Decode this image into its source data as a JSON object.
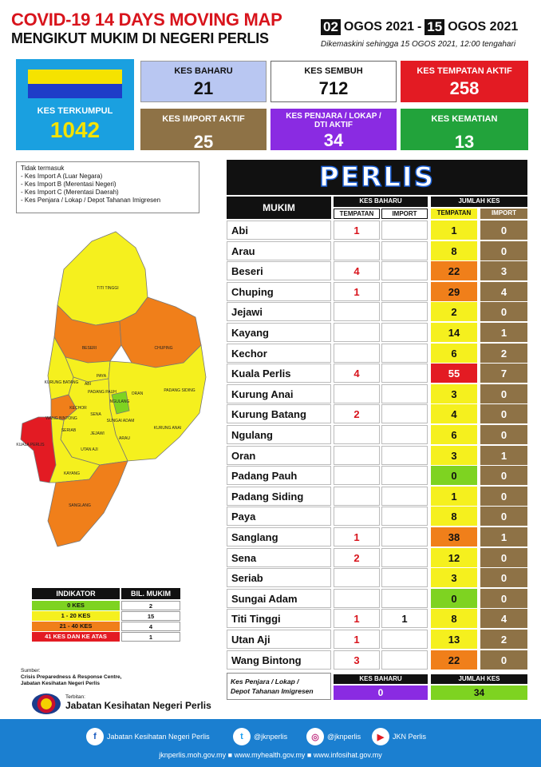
{
  "header": {
    "title": "COVID-19 14 DAYS MOVING MAP",
    "subtitle": "MENGIKUT MUKIM DI NEGERI PERLIS",
    "date_start_day": "02",
    "date_start_rest": "OGOS 2021",
    "date_sep": "-",
    "date_end_day": "15",
    "date_end_rest": "OGOS 2021",
    "updated": "Dikemaskini sehingga 15 OGOS 2021, 12:00 tengahari"
  },
  "cards": {
    "kes_terkumpul": {
      "label": "KES TERKUMPUL",
      "value": "1042"
    },
    "kes_baharu": {
      "label": "KES BAHARU",
      "value": "21"
    },
    "kes_sembuh": {
      "label": "KES SEMBUH",
      "value": "712"
    },
    "kes_tempatan_aktif": {
      "label": "KES TEMPATAN AKTIF",
      "value": "258"
    },
    "kes_import_aktif": {
      "label": "KES IMPORT AKTIF",
      "value": "25"
    },
    "kes_penjara": {
      "label": "KES PENJARA / LOKAP / DTI AKTIF",
      "value": "34"
    },
    "kes_kematian": {
      "label": "KES KEMATIAN",
      "value": "13"
    }
  },
  "notes": {
    "heading": "Tidak termasuk",
    "items": [
      "- Kes Import A (Luar Negara)",
      "- Kes Import B (Merentasi Negeri)",
      "- Kes Import C (Merentasi Daerah)",
      "- Kes Penjara / Lokap / Depot Tahanan Imigresen"
    ]
  },
  "table": {
    "state": "PERLIS",
    "col_mukim": "MUKIM",
    "col_kes_baharu": "KES BAHARU",
    "col_jumlah_kes": "JUMLAH KES",
    "sub_tempatan": "TEMPATAN",
    "sub_import": "IMPORT",
    "rows": [
      {
        "mukim": "Abi",
        "kb_t": "1",
        "kb_i": "",
        "jk_t": "1",
        "jk_i": "0",
        "color": "#f5f01e"
      },
      {
        "mukim": "Arau",
        "kb_t": "",
        "kb_i": "",
        "jk_t": "8",
        "jk_i": "0",
        "color": "#f5f01e"
      },
      {
        "mukim": "Beseri",
        "kb_t": "4",
        "kb_i": "",
        "jk_t": "22",
        "jk_i": "3",
        "color": "#f07f1a"
      },
      {
        "mukim": "Chuping",
        "kb_t": "1",
        "kb_i": "",
        "jk_t": "29",
        "jk_i": "4",
        "color": "#f07f1a"
      },
      {
        "mukim": "Jejawi",
        "kb_t": "",
        "kb_i": "",
        "jk_t": "2",
        "jk_i": "0",
        "color": "#f5f01e"
      },
      {
        "mukim": "Kayang",
        "kb_t": "",
        "kb_i": "",
        "jk_t": "14",
        "jk_i": "1",
        "color": "#f5f01e"
      },
      {
        "mukim": "Kechor",
        "kb_t": "",
        "kb_i": "",
        "jk_t": "6",
        "jk_i": "2",
        "color": "#f5f01e"
      },
      {
        "mukim": "Kuala Perlis",
        "kb_t": "4",
        "kb_i": "",
        "jk_t": "55",
        "jk_i": "7",
        "color": "#e31b23"
      },
      {
        "mukim": "Kurung Anai",
        "kb_t": "",
        "kb_i": "",
        "jk_t": "3",
        "jk_i": "0",
        "color": "#f5f01e"
      },
      {
        "mukim": "Kurung Batang",
        "kb_t": "2",
        "kb_i": "",
        "jk_t": "4",
        "jk_i": "0",
        "color": "#f5f01e"
      },
      {
        "mukim": "Ngulang",
        "kb_t": "",
        "kb_i": "",
        "jk_t": "6",
        "jk_i": "0",
        "color": "#f5f01e"
      },
      {
        "mukim": "Oran",
        "kb_t": "",
        "kb_i": "",
        "jk_t": "3",
        "jk_i": "1",
        "color": "#f5f01e"
      },
      {
        "mukim": "Padang Pauh",
        "kb_t": "",
        "kb_i": "",
        "jk_t": "0",
        "jk_i": "0",
        "color": "#7ed321"
      },
      {
        "mukim": "Padang Siding",
        "kb_t": "",
        "kb_i": "",
        "jk_t": "1",
        "jk_i": "0",
        "color": "#f5f01e"
      },
      {
        "mukim": "Paya",
        "kb_t": "",
        "kb_i": "",
        "jk_t": "8",
        "jk_i": "0",
        "color": "#f5f01e"
      },
      {
        "mukim": "Sanglang",
        "kb_t": "1",
        "kb_i": "",
        "jk_t": "38",
        "jk_i": "1",
        "color": "#f07f1a"
      },
      {
        "mukim": "Sena",
        "kb_t": "2",
        "kb_i": "",
        "jk_t": "12",
        "jk_i": "0",
        "color": "#f5f01e"
      },
      {
        "mukim": "Seriab",
        "kb_t": "",
        "kb_i": "",
        "jk_t": "3",
        "jk_i": "0",
        "color": "#f5f01e"
      },
      {
        "mukim": "Sungai Adam",
        "kb_t": "",
        "kb_i": "",
        "jk_t": "0",
        "jk_i": "0",
        "color": "#7ed321"
      },
      {
        "mukim": "Titi Tinggi",
        "kb_t": "1",
        "kb_i": "1",
        "jk_t": "8",
        "jk_i": "4",
        "color": "#f5f01e"
      },
      {
        "mukim": "Utan Aji",
        "kb_t": "1",
        "kb_i": "",
        "jk_t": "13",
        "jk_i": "2",
        "color": "#f5f01e"
      },
      {
        "mukim": "Wang Bintong",
        "kb_t": "3",
        "kb_i": "",
        "jk_t": "22",
        "jk_i": "0",
        "color": "#f07f1a"
      }
    ]
  },
  "penjara": {
    "label1": "Kes Penjara / Lokap /",
    "label2": "Depot Tahanan Imigresen",
    "kb_label": "KES BAHARU",
    "kb_value": "0",
    "jk_label": "JUMLAH KES",
    "jk_value": "34"
  },
  "legend": {
    "h1": "INDIKATOR",
    "h2": "BIL. MUKIM",
    "rows": [
      {
        "label": "0 KES",
        "count": "2",
        "color": "#7ed321"
      },
      {
        "label": "1 - 20 KES",
        "count": "15",
        "color": "#f5f01e"
      },
      {
        "label": "21 - 40 KES",
        "count": "4",
        "color": "#f07f1a"
      },
      {
        "label": "41 KES DAN KE ATAS",
        "count": "1",
        "color": "#e31b23"
      }
    ]
  },
  "map_labels": [
    "TITI TINGGI",
    "BESERI",
    "CHUPING",
    "KURUNG BATANG",
    "PAYA",
    "ABI",
    "PADANG PAUH",
    "NGULANG",
    "ORAN",
    "PADANG SIDING",
    "KECHOR",
    "WANG BINTONG",
    "SENA",
    "SUNGAI ADAM",
    "SERIAB",
    "JEJAWI",
    "KURUNG ANAI",
    "UTAN AJI",
    "ARAU",
    "KUALA PERLIS",
    "KAYANG",
    "SANGLANG"
  ],
  "source": {
    "line1": "Sumber:",
    "line2": "Crisis Preparedness & Response Centre,",
    "line3": "Jabatan Kesihatan Negeri Perlis"
  },
  "publisher": {
    "terbitan": "Terbitan:",
    "name": "Jabatan Kesihatan Negeri Perlis"
  },
  "footer": {
    "facebook": "Jabatan Kesihatan Negeri Perlis",
    "twitter": "@jknperlis",
    "instagram": "@jknperlis",
    "youtube": "JKN Perlis",
    "websites": "jknperlis.moh.gov.my ■ www.myhealth.gov.my ■ www.infosihat.gov.my"
  },
  "colors": {
    "red": "#d8141c",
    "blue_card": "#b9c7f2",
    "yellow": "#f5f01e",
    "orange": "#f07f1a",
    "green": "#7ed321",
    "brown": "#8e7246",
    "purple": "#8a2be2",
    "footer_blue": "#1b7fd0"
  }
}
